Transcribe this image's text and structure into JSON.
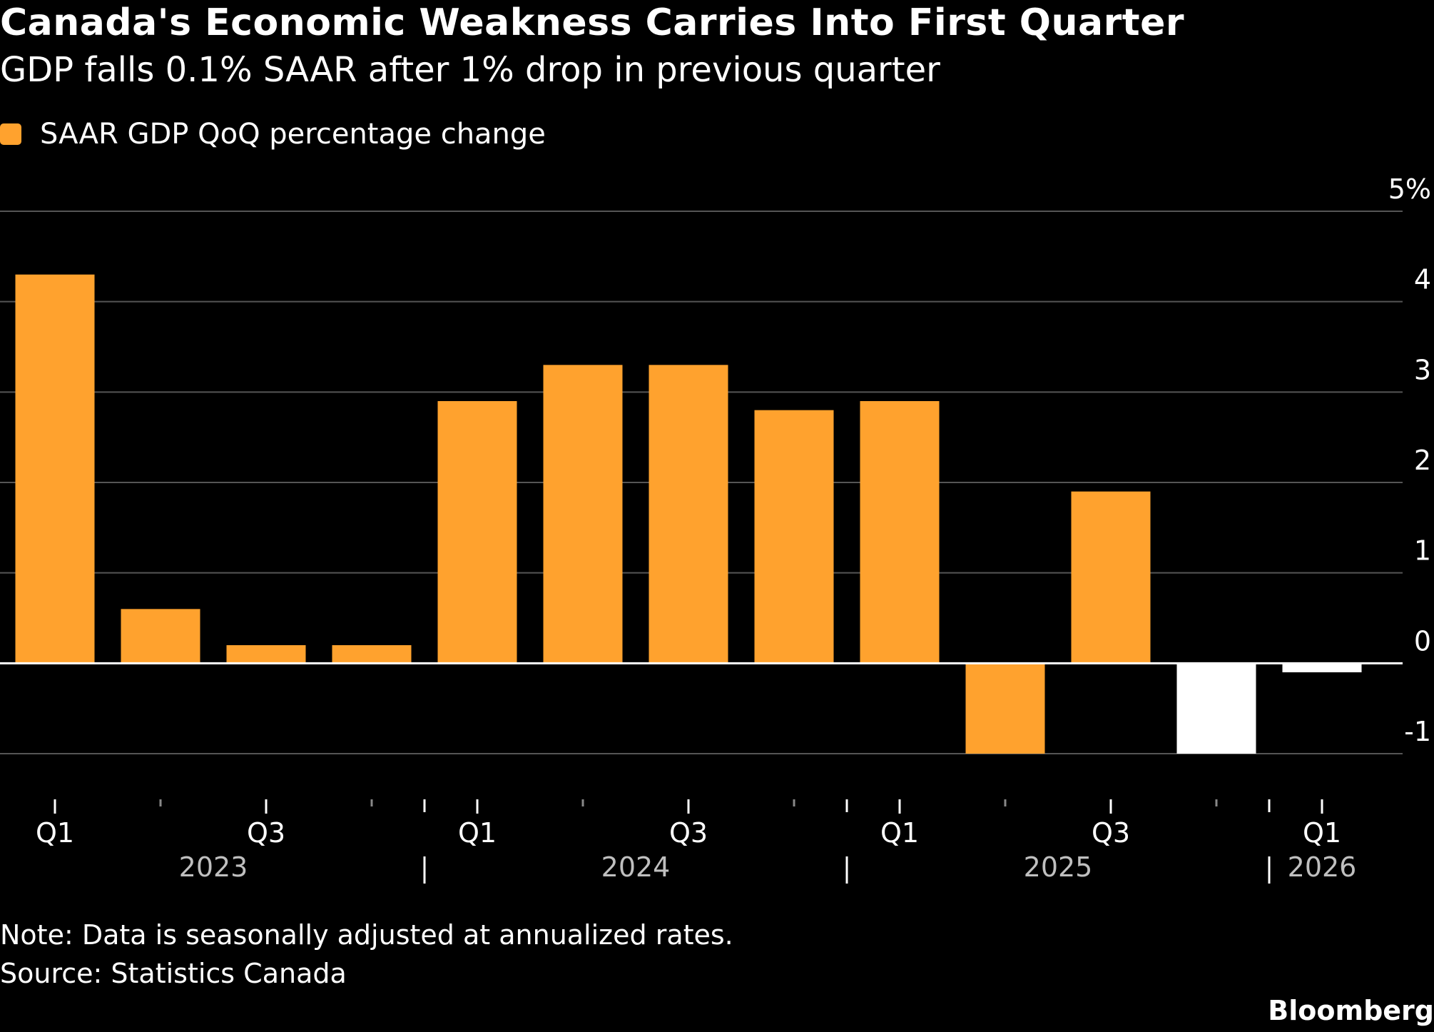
{
  "header": {
    "title": "Canada's Economic Weakness Carries Into First Quarter",
    "subtitle": "GDP falls 0.1% SAAR after 1% drop in previous quarter"
  },
  "footer": {
    "note": "Note: Data is seasonally adjusted at annualized rates.",
    "source": "Source: Statistics Canada",
    "brand": "Bloomberg"
  },
  "colors": {
    "background": "#000000",
    "bar": "#FFA22E",
    "bar_highlight": "#FFFFFF",
    "grid": "#555555",
    "zero_line": "#FFFFFF",
    "year_label": "#BFBFBF"
  },
  "chart_data": {
    "type": "bar",
    "legend": {
      "label": "SAAR GDP QoQ percentage change",
      "position": "top-left"
    },
    "categories": [
      "2023 Q1",
      "2023 Q2",
      "2023 Q3",
      "2023 Q4",
      "2024 Q1",
      "2024 Q2",
      "2024 Q3",
      "2024 Q4",
      "2025 Q1",
      "2025 Q2",
      "2025 Q3",
      "2025 Q4",
      "2026 Q1"
    ],
    "tick_labels": [
      "Q1",
      "",
      "Q3",
      "",
      "Q1",
      "",
      "Q3",
      "",
      "Q1",
      "",
      "Q3",
      "",
      "Q1"
    ],
    "year_labels": [
      {
        "year": "2023",
        "quarters": 4
      },
      {
        "year": "2024",
        "quarters": 4
      },
      {
        "year": "2025",
        "quarters": 4
      },
      {
        "year": "2026",
        "quarters": 1
      }
    ],
    "series": [
      {
        "name": "SAAR GDP QoQ percentage change",
        "values": [
          4.3,
          0.6,
          0.2,
          0.2,
          2.9,
          3.3,
          3.3,
          2.8,
          2.9,
          -1.0,
          1.9,
          -1.0,
          -0.1
        ],
        "highlight": [
          false,
          false,
          false,
          false,
          false,
          false,
          false,
          false,
          false,
          false,
          false,
          true,
          true
        ]
      }
    ],
    "ylim": [
      -1,
      5
    ],
    "yticks": [
      -1,
      0,
      1,
      2,
      3,
      4,
      5
    ],
    "ytick_labels": [
      "-1",
      "0",
      "1",
      "2",
      "3",
      "4",
      "5%"
    ],
    "y_axis_side": "right",
    "grid": true
  }
}
